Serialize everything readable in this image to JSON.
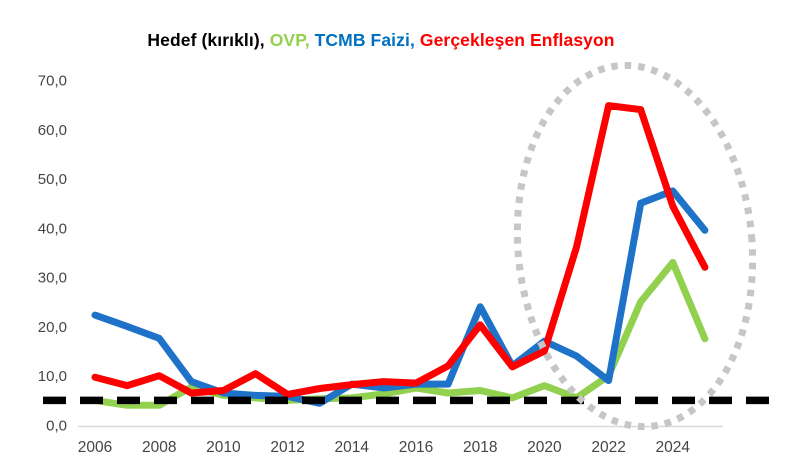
{
  "title_parts": [
    {
      "text": "Hedef (kırıklı), ",
      "color": "#000000"
    },
    {
      "text": "OVP, ",
      "color": "#92d050"
    },
    {
      "text": "TCMB Faizi, ",
      "color": "#0070c0"
    },
    {
      "text": "Gerçekleşen Enflasyon",
      "color": "#ff0000"
    }
  ],
  "chart_data": {
    "type": "line",
    "title": "Hedef (kırıklı), OVP, TCMB Faizi, Gerçekleşen Enflasyon",
    "x": [
      2006,
      2007,
      2008,
      2009,
      2010,
      2011,
      2012,
      2013,
      2014,
      2015,
      2016,
      2017,
      2018,
      2019,
      2020,
      2021,
      2022,
      2023,
      2024,
      2025
    ],
    "series": [
      {
        "id": "ovp",
        "name": "OVP",
        "color": "#92d050",
        "values": [
          5.0,
          4.0,
          4.0,
          7.7,
          6.0,
          5.5,
          5.0,
          5.3,
          5.5,
          6.3,
          7.5,
          6.5,
          7.0,
          5.5,
          8.0,
          5.5,
          10.0,
          25.0,
          33.0,
          17.5
        ]
      },
      {
        "id": "tcmb-faizi",
        "name": "TCMB Faizi",
        "color": "#1e73c8",
        "values": [
          22.3,
          20.0,
          17.6,
          8.8,
          6.5,
          6.0,
          5.8,
          4.4,
          8.3,
          7.5,
          8.3,
          8.3,
          24.0,
          12.0,
          17.0,
          14.0,
          9.0,
          45.0,
          47.5,
          39.5
        ]
      },
      {
        "id": "gerceklesen-enflasyon",
        "name": "Gerçekleşen Enflasyon",
        "color": "#fe0000",
        "values": [
          9.7,
          8.0,
          10.0,
          6.5,
          7.0,
          10.4,
          6.2,
          7.4,
          8.2,
          8.8,
          8.5,
          12.0,
          20.3,
          11.8,
          15.0,
          36.1,
          64.8,
          64.0,
          44.4,
          32.0
        ]
      }
    ],
    "target_line": {
      "name": "Hedef (kırıklı)",
      "value": 5.0,
      "style": "dashed",
      "color": "#000000"
    },
    "y_ticks": [
      0,
      10,
      20,
      30,
      40,
      50,
      60,
      70
    ],
    "y_tick_labels": [
      "0,0",
      "10,0",
      "20,0",
      "30,0",
      "40,0",
      "50,0",
      "60,0",
      "70,0"
    ],
    "x_tick_labels": [
      "2006",
      "2008",
      "2010",
      "2012",
      "2014",
      "2016",
      "2018",
      "2020",
      "2022",
      "2024"
    ],
    "ylim": [
      0,
      70
    ],
    "grid": false,
    "legend_position": "in-title",
    "axis_color": "#d9d9d9",
    "annotation": {
      "type": "ellipse",
      "label": "2021-2025 spike highlight",
      "color": "#c6c6c6",
      "x_range": [
        2019.5,
        2026.5
      ]
    }
  }
}
